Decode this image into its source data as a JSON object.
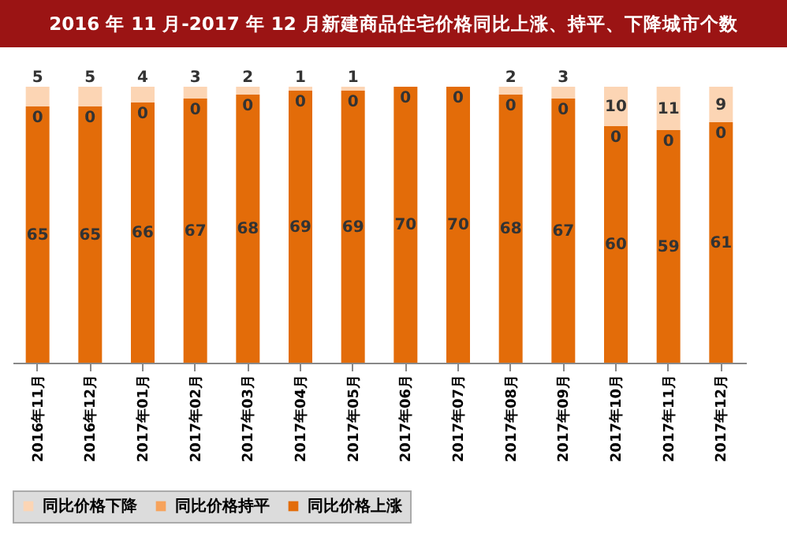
{
  "chart_data": {
    "type": "bar",
    "title": "2016 年 11 月-2017 年 12 月新建商品住宅价格同比上涨、持平、下降城市个数",
    "categories": [
      "2016年11月",
      "2016年12月",
      "2017年01月",
      "2017年02月",
      "2017年03月",
      "2017年04月",
      "2017年05月",
      "2017年06月",
      "2017年07月",
      "2017年08月",
      "2017年09月",
      "2017年10月",
      "2017年11月",
      "2017年12月"
    ],
    "stacked": true,
    "legend": "bottom",
    "series": [
      {
        "name": "同比价格上涨",
        "color": "#e36c09",
        "values": [
          65,
          65,
          66,
          67,
          68,
          69,
          69,
          70,
          70,
          68,
          67,
          60,
          59,
          61
        ],
        "value_labels": [
          "65",
          "65",
          "66",
          "67",
          "68",
          "69",
          "69",
          "70",
          "70",
          "68",
          "67",
          "60",
          "59",
          "61"
        ]
      },
      {
        "name": "同比价格持平",
        "color": "#f7a35c",
        "values": [
          0,
          0,
          0,
          0,
          0,
          0,
          0,
          0,
          0,
          0,
          0,
          0,
          0,
          0
        ],
        "value_labels": [
          "0",
          "0",
          "0",
          "0",
          "0",
          "0",
          "0",
          "0",
          "0",
          "0",
          "0",
          "0",
          "0",
          "0"
        ]
      },
      {
        "name": "同比价格下降",
        "color": "#fcd5b4",
        "values": [
          5,
          5,
          4,
          3,
          2,
          1,
          1,
          0,
          0,
          2,
          3,
          10,
          11,
          9
        ],
        "value_labels": [
          "5",
          "5",
          "4",
          "3",
          "2",
          "1",
          "1",
          null,
          null,
          "2",
          "3",
          "10",
          "11",
          "9"
        ]
      }
    ]
  }
}
